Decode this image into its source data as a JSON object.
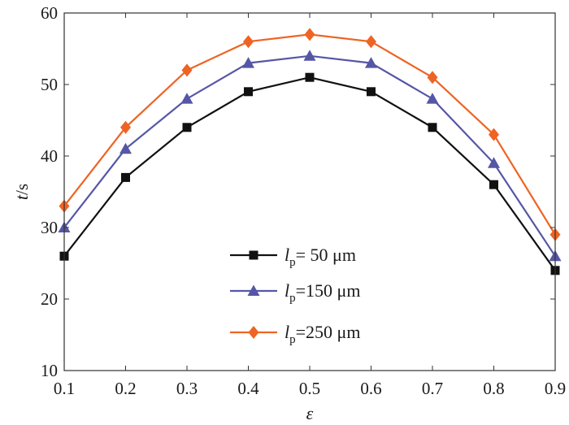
{
  "chart_data": {
    "type": "line",
    "x": [
      0.1,
      0.2,
      0.3,
      0.4,
      0.5,
      0.6,
      0.7,
      0.8,
      0.9
    ],
    "x_tick_labels": [
      "0.1",
      "0.2",
      "0.3",
      "0.4",
      "0.5",
      "0.6",
      "0.7",
      "0.8",
      "0.9"
    ],
    "y_tick_labels": [
      "10",
      "20",
      "30",
      "40",
      "50",
      "60"
    ],
    "y_ticks": [
      10,
      20,
      30,
      40,
      50,
      60
    ],
    "xlim": [
      0.1,
      0.9
    ],
    "ylim": [
      10,
      60
    ],
    "xlabel": "ε",
    "ylabel_var": "t",
    "ylabel_unit": "/s",
    "grid": false,
    "legend_position": "bottom-center",
    "series": [
      {
        "name": "lp= 50 μm",
        "legend_var": "l",
        "legend_sub": "p",
        "legend_rest": "=  50 μm",
        "color": "#111111",
        "marker": "square",
        "values": [
          26,
          37,
          44,
          49,
          51,
          49,
          44,
          36,
          24
        ]
      },
      {
        "name": "lp=150 μm",
        "legend_var": "l",
        "legend_sub": "p",
        "legend_rest": "=150 μm",
        "color": "#5656a6",
        "marker": "triangle",
        "values": [
          30,
          41,
          48,
          53,
          54,
          53,
          48,
          39,
          26
        ]
      },
      {
        "name": "lp=250 μm",
        "legend_var": "l",
        "legend_sub": "p",
        "legend_rest": "=250 μm",
        "color": "#ee6424",
        "marker": "diamond",
        "values": [
          33,
          44,
          52,
          56,
          57,
          56,
          51,
          43,
          29
        ]
      }
    ]
  }
}
